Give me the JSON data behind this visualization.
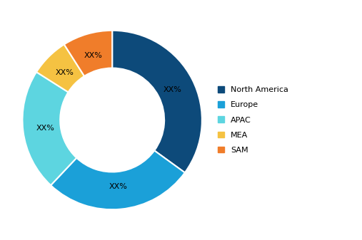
{
  "segments": [
    "North America",
    "Europe",
    "APAC",
    "MEA",
    "SAM"
  ],
  "values": [
    35,
    27,
    22,
    7,
    9
  ],
  "colors": [
    "#0d4a7a",
    "#1ba0d8",
    "#5dd5e0",
    "#f5c242",
    "#f07d2a"
  ],
  "labels": [
    "XX%",
    "XX%",
    "XX%",
    "XX%",
    "XX%"
  ],
  "legend_labels": [
    "North America",
    "Europe",
    "APAC",
    "MEA",
    "SAM"
  ],
  "background_color": "#ffffff",
  "label_fontsize": 8,
  "legend_fontsize": 8,
  "wedge_linewidth": 1.5,
  "wedge_linecolor": "#ffffff",
  "start_angle": 90,
  "donut_width": 0.42
}
